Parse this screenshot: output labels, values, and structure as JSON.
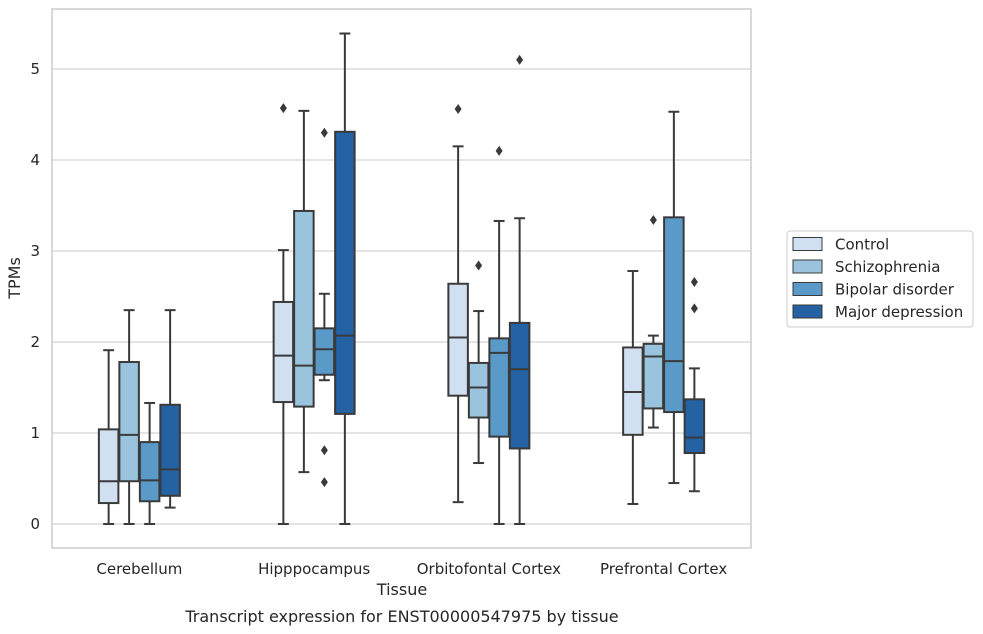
{
  "chart_data": {
    "type": "boxplot",
    "title": "",
    "caption": "Transcript expression for ENST00000547975 by tissue",
    "xlabel": "Tissue",
    "ylabel": "TPMs",
    "ylim": [
      -0.25,
      5.65
    ],
    "yticks": [
      0,
      1,
      2,
      3,
      4,
      5
    ],
    "grid": "horizontal",
    "legend_position": "right",
    "categories": [
      "Cerebellum",
      "Hipppocampus",
      "Orbitofontal Cortex",
      "Prefrontal Cortex"
    ],
    "series": [
      {
        "name": "Control",
        "color": "#d0e0f1",
        "boxes": [
          {
            "whisker_low": 0.0,
            "q1": 0.23,
            "median": 0.47,
            "q3": 1.04,
            "whisker_high": 1.91,
            "outliers": []
          },
          {
            "whisker_low": 0.0,
            "q1": 1.34,
            "median": 1.85,
            "q3": 2.44,
            "whisker_high": 3.01,
            "outliers": [
              4.57
            ]
          },
          {
            "whisker_low": 0.24,
            "q1": 1.41,
            "median": 2.05,
            "q3": 2.64,
            "whisker_high": 4.15,
            "outliers": [
              4.56
            ]
          },
          {
            "whisker_low": 0.22,
            "q1": 0.98,
            "median": 1.45,
            "q3": 1.94,
            "whisker_high": 2.78,
            "outliers": []
          }
        ]
      },
      {
        "name": "Schizophrenia",
        "color": "#9ac4de",
        "boxes": [
          {
            "whisker_low": 0.0,
            "q1": 0.47,
            "median": 0.98,
            "q3": 1.78,
            "whisker_high": 2.35,
            "outliers": []
          },
          {
            "whisker_low": 0.57,
            "q1": 1.29,
            "median": 1.74,
            "q3": 3.44,
            "whisker_high": 4.54,
            "outliers": []
          },
          {
            "whisker_low": 0.67,
            "q1": 1.17,
            "median": 1.5,
            "q3": 1.77,
            "whisker_high": 2.34,
            "outliers": [
              2.84
            ]
          },
          {
            "whisker_low": 1.06,
            "q1": 1.27,
            "median": 1.84,
            "q3": 1.98,
            "whisker_high": 2.07,
            "outliers": [
              3.34
            ]
          }
        ]
      },
      {
        "name": "Bipolar disorder",
        "color": "#5a9ac8",
        "boxes": [
          {
            "whisker_low": 0.0,
            "q1": 0.25,
            "median": 0.48,
            "q3": 0.9,
            "whisker_high": 1.33,
            "outliers": []
          },
          {
            "whisker_low": 1.58,
            "q1": 1.64,
            "median": 1.92,
            "q3": 2.15,
            "whisker_high": 2.53,
            "outliers": [
              4.3,
              0.81,
              0.46
            ]
          },
          {
            "whisker_low": 0.0,
            "q1": 0.96,
            "median": 1.88,
            "q3": 2.04,
            "whisker_high": 3.33,
            "outliers": [
              4.1
            ]
          },
          {
            "whisker_low": 0.45,
            "q1": 1.23,
            "median": 1.79,
            "q3": 3.37,
            "whisker_high": 4.53,
            "outliers": []
          }
        ]
      },
      {
        "name": "Major depression",
        "color": "#2462a4",
        "boxes": [
          {
            "whisker_low": 0.18,
            "q1": 0.31,
            "median": 0.6,
            "q3": 1.31,
            "whisker_high": 2.35,
            "outliers": []
          },
          {
            "whisker_low": 0.0,
            "q1": 1.21,
            "median": 2.07,
            "q3": 4.31,
            "whisker_high": 5.39,
            "outliers": []
          },
          {
            "whisker_low": 0.0,
            "q1": 0.83,
            "median": 1.7,
            "q3": 2.21,
            "whisker_high": 3.36,
            "outliers": [
              5.1
            ]
          },
          {
            "whisker_low": 0.36,
            "q1": 0.78,
            "median": 0.95,
            "q3": 1.37,
            "whisker_high": 1.71,
            "outliers": [
              2.66,
              2.37
            ]
          }
        ]
      }
    ]
  }
}
